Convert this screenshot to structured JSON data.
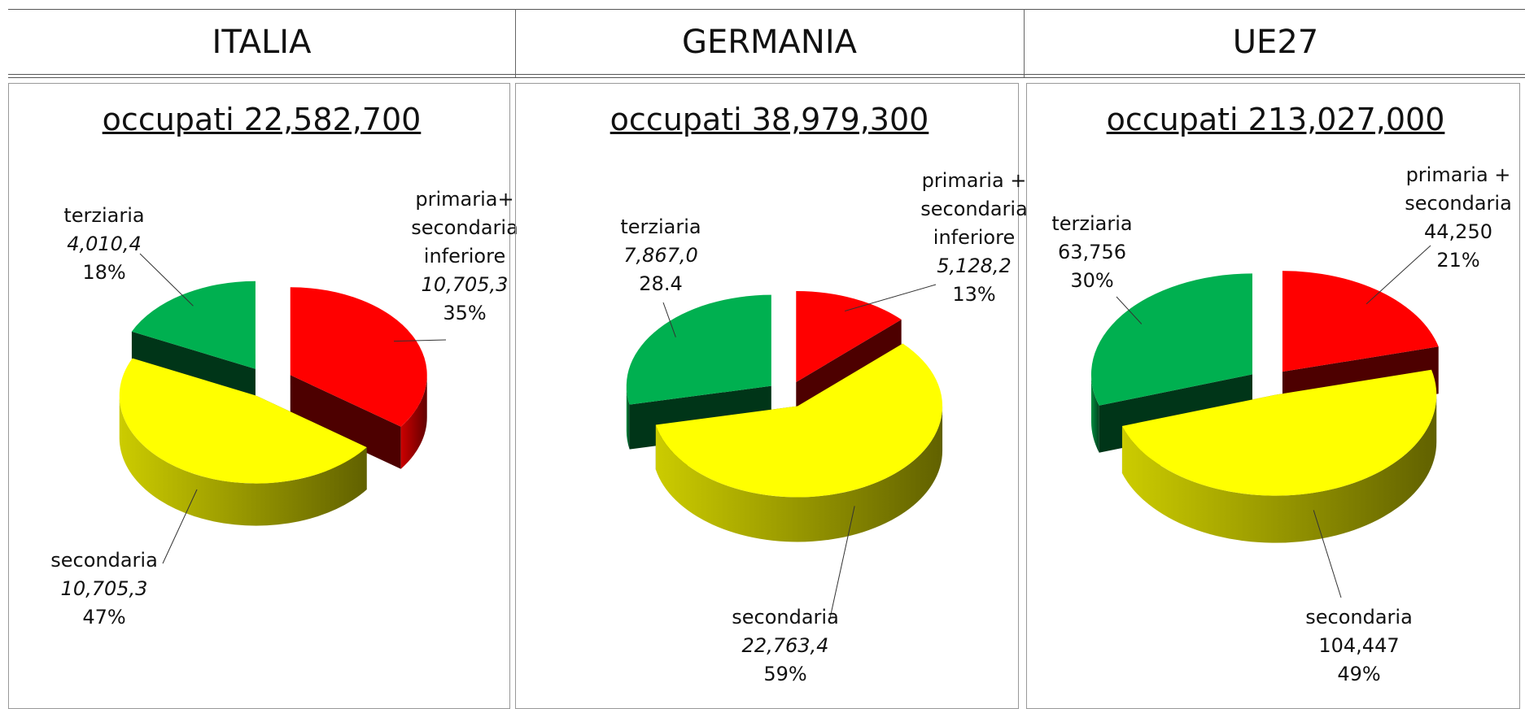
{
  "chart_data": [
    {
      "type": "pie",
      "title": "ITALIA",
      "subtitle": "occupati 22,582,700",
      "categories": [
        "primaria+\nsecondaria\ninferiore",
        "secondaria",
        "terziaria"
      ],
      "values": [
        35,
        47,
        18
      ],
      "value_labels": [
        "35%",
        "47%",
        "18%"
      ],
      "detail_labels": [
        "10,705,3",
        "10,705,3",
        "4,010,4"
      ],
      "colors": [
        "#ff0000",
        "#ffff00",
        "#00b050"
      ]
    },
    {
      "type": "pie",
      "title": "GERMANIA",
      "subtitle": "occupati 38,979,300",
      "categories": [
        "primaria +\nsecondaria\ninferiore",
        "secondaria",
        "terziaria"
      ],
      "values": [
        13,
        59,
        28.4
      ],
      "value_labels": [
        "13%",
        "59%",
        "28.4"
      ],
      "detail_labels": [
        "5,128,2",
        "22,763,4",
        "7,867,0"
      ],
      "colors": [
        "#ff0000",
        "#ffff00",
        "#00b050"
      ]
    },
    {
      "type": "pie",
      "title": "UE27",
      "subtitle": "occupati 213,027,000",
      "categories": [
        "primaria +\nsecondaria",
        "secondaria",
        "terziaria"
      ],
      "values": [
        21,
        49,
        30
      ],
      "value_labels": [
        "21%",
        "49%",
        "30%"
      ],
      "detail_labels": [
        "44,250",
        "104,447",
        "63,756"
      ],
      "colors": [
        "#ff0000",
        "#ffff00",
        "#00b050"
      ]
    }
  ]
}
